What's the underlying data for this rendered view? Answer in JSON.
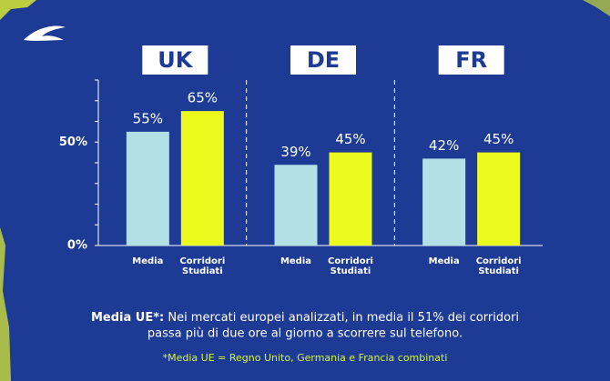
{
  "chart_data": {
    "type": "bar",
    "categories": [
      "UK",
      "DE",
      "FR"
    ],
    "series": [
      {
        "name": "Media",
        "color": "#b3e0e5",
        "values": [
          55,
          39,
          42
        ],
        "value_labels": [
          "55%",
          "39%",
          "42%"
        ]
      },
      {
        "name": "Corridori Studiati",
        "color": "#ecfa1e",
        "values": [
          65,
          45,
          45
        ],
        "value_labels": [
          "65%",
          "45%",
          "45%"
        ]
      }
    ],
    "ylim": [
      0,
      80
    ],
    "yticks": [
      {
        "value": 0,
        "label": "0%"
      },
      {
        "value": 50,
        "label": "50%"
      }
    ],
    "minor_yticks": [
      10,
      20,
      30,
      40,
      60,
      70,
      80
    ]
  },
  "notes": {
    "lead": "Media UE*:",
    "lines": [
      "Nei mercati europei analizzati, in media il 51% dei corridori",
      "passa più di due ore al giorno a scorrere sul telefono."
    ],
    "footnote": "*Media UE = Regno Unito, Germania e Francia combinati"
  }
}
